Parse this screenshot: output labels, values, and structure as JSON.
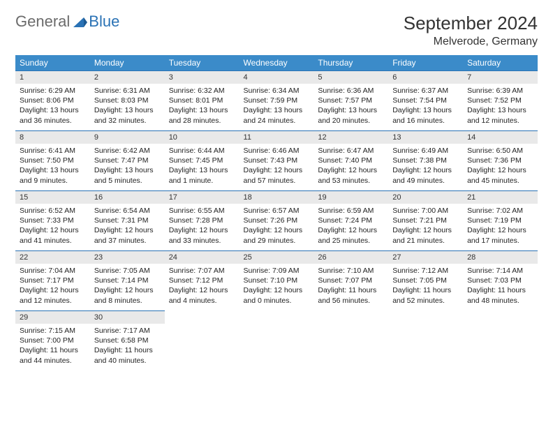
{
  "logo": {
    "text1": "General",
    "text2": "Blue",
    "color1": "#6b6b6b",
    "color2": "#2a72b5"
  },
  "title": "September 2024",
  "location": "Melverode, Germany",
  "colors": {
    "header_bg": "#3b8bc9",
    "header_fg": "#ffffff",
    "cell_border": "#2a72b5",
    "daynum_bg": "#e9e9e9",
    "text": "#222222",
    "page_bg": "#ffffff"
  },
  "typography": {
    "title_fontsize": 26,
    "location_fontsize": 16,
    "weekday_fontsize": 12,
    "daynum_fontsize": 11,
    "body_fontsize": 10.5
  },
  "weekdays": [
    "Sunday",
    "Monday",
    "Tuesday",
    "Wednesday",
    "Thursday",
    "Friday",
    "Saturday"
  ],
  "days": [
    {
      "n": 1,
      "sunrise": "6:29 AM",
      "sunset": "8:06 PM",
      "daylight": "13 hours and 36 minutes."
    },
    {
      "n": 2,
      "sunrise": "6:31 AM",
      "sunset": "8:03 PM",
      "daylight": "13 hours and 32 minutes."
    },
    {
      "n": 3,
      "sunrise": "6:32 AM",
      "sunset": "8:01 PM",
      "daylight": "13 hours and 28 minutes."
    },
    {
      "n": 4,
      "sunrise": "6:34 AM",
      "sunset": "7:59 PM",
      "daylight": "13 hours and 24 minutes."
    },
    {
      "n": 5,
      "sunrise": "6:36 AM",
      "sunset": "7:57 PM",
      "daylight": "13 hours and 20 minutes."
    },
    {
      "n": 6,
      "sunrise": "6:37 AM",
      "sunset": "7:54 PM",
      "daylight": "13 hours and 16 minutes."
    },
    {
      "n": 7,
      "sunrise": "6:39 AM",
      "sunset": "7:52 PM",
      "daylight": "13 hours and 12 minutes."
    },
    {
      "n": 8,
      "sunrise": "6:41 AM",
      "sunset": "7:50 PM",
      "daylight": "13 hours and 9 minutes."
    },
    {
      "n": 9,
      "sunrise": "6:42 AM",
      "sunset": "7:47 PM",
      "daylight": "13 hours and 5 minutes."
    },
    {
      "n": 10,
      "sunrise": "6:44 AM",
      "sunset": "7:45 PM",
      "daylight": "13 hours and 1 minute."
    },
    {
      "n": 11,
      "sunrise": "6:46 AM",
      "sunset": "7:43 PM",
      "daylight": "12 hours and 57 minutes."
    },
    {
      "n": 12,
      "sunrise": "6:47 AM",
      "sunset": "7:40 PM",
      "daylight": "12 hours and 53 minutes."
    },
    {
      "n": 13,
      "sunrise": "6:49 AM",
      "sunset": "7:38 PM",
      "daylight": "12 hours and 49 minutes."
    },
    {
      "n": 14,
      "sunrise": "6:50 AM",
      "sunset": "7:36 PM",
      "daylight": "12 hours and 45 minutes."
    },
    {
      "n": 15,
      "sunrise": "6:52 AM",
      "sunset": "7:33 PM",
      "daylight": "12 hours and 41 minutes."
    },
    {
      "n": 16,
      "sunrise": "6:54 AM",
      "sunset": "7:31 PM",
      "daylight": "12 hours and 37 minutes."
    },
    {
      "n": 17,
      "sunrise": "6:55 AM",
      "sunset": "7:28 PM",
      "daylight": "12 hours and 33 minutes."
    },
    {
      "n": 18,
      "sunrise": "6:57 AM",
      "sunset": "7:26 PM",
      "daylight": "12 hours and 29 minutes."
    },
    {
      "n": 19,
      "sunrise": "6:59 AM",
      "sunset": "7:24 PM",
      "daylight": "12 hours and 25 minutes."
    },
    {
      "n": 20,
      "sunrise": "7:00 AM",
      "sunset": "7:21 PM",
      "daylight": "12 hours and 21 minutes."
    },
    {
      "n": 21,
      "sunrise": "7:02 AM",
      "sunset": "7:19 PM",
      "daylight": "12 hours and 17 minutes."
    },
    {
      "n": 22,
      "sunrise": "7:04 AM",
      "sunset": "7:17 PM",
      "daylight": "12 hours and 12 minutes."
    },
    {
      "n": 23,
      "sunrise": "7:05 AM",
      "sunset": "7:14 PM",
      "daylight": "12 hours and 8 minutes."
    },
    {
      "n": 24,
      "sunrise": "7:07 AM",
      "sunset": "7:12 PM",
      "daylight": "12 hours and 4 minutes."
    },
    {
      "n": 25,
      "sunrise": "7:09 AM",
      "sunset": "7:10 PM",
      "daylight": "12 hours and 0 minutes."
    },
    {
      "n": 26,
      "sunrise": "7:10 AM",
      "sunset": "7:07 PM",
      "daylight": "11 hours and 56 minutes."
    },
    {
      "n": 27,
      "sunrise": "7:12 AM",
      "sunset": "7:05 PM",
      "daylight": "11 hours and 52 minutes."
    },
    {
      "n": 28,
      "sunrise": "7:14 AM",
      "sunset": "7:03 PM",
      "daylight": "11 hours and 48 minutes."
    },
    {
      "n": 29,
      "sunrise": "7:15 AM",
      "sunset": "7:00 PM",
      "daylight": "11 hours and 44 minutes."
    },
    {
      "n": 30,
      "sunrise": "7:17 AM",
      "sunset": "6:58 PM",
      "daylight": "11 hours and 40 minutes."
    }
  ],
  "labels": {
    "sunrise": "Sunrise:",
    "sunset": "Sunset:",
    "daylight": "Daylight:"
  },
  "layout": {
    "first_day_column": 0,
    "rows": 5,
    "cols": 7
  }
}
